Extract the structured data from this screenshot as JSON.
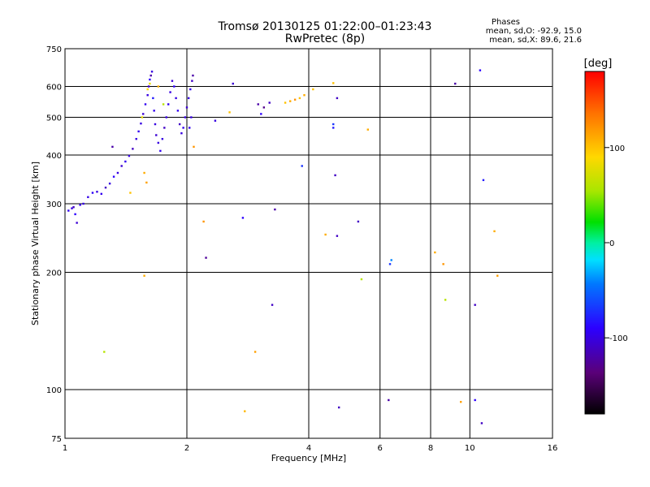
{
  "header": {
    "title": "Tromsø 20130125 01:22:00–01:23:43",
    "subtitle": "RwPretec (8p)",
    "stats_title": "Phases",
    "stats_o": "mean, sd,O: -92.9, 15.0",
    "stats_x": "mean, sd,X:  89.6, 21.6"
  },
  "chart_data": {
    "type": "scatter",
    "title": "Tromsø 20130125 01:22:00–01:23:43",
    "subtitle": "RwPretec (8p)",
    "xlabel": "Frequency [MHz]",
    "ylabel": "Stationary phase Virtual Height [km]",
    "xscale": "log",
    "yscale": "log",
    "xlim": [
      1,
      16
    ],
    "ylim": [
      75,
      750
    ],
    "x_ticks": [
      1,
      2,
      4,
      6,
      8,
      10,
      16
    ],
    "x_grid": [
      2,
      4,
      6,
      8,
      10
    ],
    "y_ticks": [
      75,
      100,
      200,
      300,
      400,
      500,
      600,
      750
    ],
    "y_grid": [
      100,
      200,
      300,
      400,
      500,
      600
    ],
    "colorbar": {
      "label": "[deg]",
      "range": [
        -180,
        180
      ],
      "ticks": [
        100,
        0,
        -100
      ]
    },
    "points": [
      [
        1.02,
        288,
        -95
      ],
      [
        1.04,
        292,
        -100
      ],
      [
        1.05,
        294,
        -110
      ],
      [
        1.06,
        282,
        -90
      ],
      [
        1.07,
        268,
        -105
      ],
      [
        1.09,
        298,
        -95
      ],
      [
        1.11,
        300,
        -100
      ],
      [
        1.14,
        312,
        -98
      ],
      [
        1.17,
        320,
        -92
      ],
      [
        1.2,
        322,
        -100
      ],
      [
        1.23,
        318,
        -95
      ],
      [
        1.26,
        330,
        -110
      ],
      [
        1.29,
        338,
        -100
      ],
      [
        1.31,
        420,
        -120
      ],
      [
        1.32,
        352,
        -90
      ],
      [
        1.35,
        360,
        -100
      ],
      [
        1.38,
        375,
        -105
      ],
      [
        1.41,
        385,
        -95
      ],
      [
        1.44,
        398,
        -100
      ],
      [
        1.47,
        415,
        -110
      ],
      [
        1.5,
        440,
        -100
      ],
      [
        1.52,
        460,
        -95
      ],
      [
        1.54,
        482,
        -100
      ],
      [
        1.56,
        510,
        -105
      ],
      [
        1.58,
        540,
        -95
      ],
      [
        1.6,
        570,
        -100
      ],
      [
        1.61,
        600,
        -110
      ],
      [
        1.62,
        625,
        -90
      ],
      [
        1.63,
        640,
        -120
      ],
      [
        1.64,
        655,
        -100
      ],
      [
        1.65,
        560,
        -80
      ],
      [
        1.66,
        520,
        -95
      ],
      [
        1.67,
        480,
        -100
      ],
      [
        1.68,
        450,
        -105
      ],
      [
        1.7,
        430,
        -100
      ],
      [
        1.72,
        410,
        -95
      ],
      [
        1.74,
        440,
        -100
      ],
      [
        1.76,
        470,
        -110
      ],
      [
        1.78,
        500,
        -100
      ],
      [
        1.8,
        540,
        -95
      ],
      [
        1.82,
        580,
        -100
      ],
      [
        1.84,
        620,
        -105
      ],
      [
        1.86,
        600,
        -90
      ],
      [
        1.88,
        560,
        -100
      ],
      [
        1.9,
        520,
        -95
      ],
      [
        1.92,
        480,
        -110
      ],
      [
        1.94,
        455,
        -100
      ],
      [
        1.96,
        470,
        -95
      ],
      [
        1.98,
        500,
        -100
      ],
      [
        2.0,
        530,
        -105
      ],
      [
        2.02,
        560,
        -100
      ],
      [
        2.04,
        590,
        -95
      ],
      [
        2.06,
        620,
        -110
      ],
      [
        2.07,
        640,
        -120
      ],
      [
        2.05,
        500,
        -100
      ],
      [
        2.03,
        470,
        -95
      ],
      [
        1.57,
        360,
        110
      ],
      [
        1.59,
        340,
        115
      ],
      [
        1.6,
        590,
        90
      ],
      [
        1.62,
        610,
        80
      ],
      [
        1.75,
        540,
        60
      ],
      [
        1.55,
        500,
        80
      ],
      [
        1.7,
        600,
        110
      ],
      [
        2.08,
        420,
        120
      ],
      [
        1.45,
        320,
        100
      ],
      [
        1.57,
        196,
        110
      ],
      [
        2.2,
        270,
        120
      ],
      [
        2.23,
        218,
        -125
      ],
      [
        2.35,
        490,
        -100
      ],
      [
        2.55,
        515,
        100
      ],
      [
        2.6,
        610,
        -105
      ],
      [
        2.75,
        276,
        -90
      ],
      [
        2.78,
        88,
        105
      ],
      [
        2.95,
        125,
        115
      ],
      [
        3.05,
        510,
        -90
      ],
      [
        3.0,
        540,
        -120
      ],
      [
        3.1,
        530,
        -130
      ],
      [
        3.2,
        545,
        -110
      ],
      [
        3.25,
        165,
        -110
      ],
      [
        3.3,
        290,
        -120
      ],
      [
        3.5,
        545,
        100
      ],
      [
        3.6,
        550,
        110
      ],
      [
        3.7,
        555,
        120
      ],
      [
        3.8,
        560,
        100
      ],
      [
        3.9,
        570,
        110
      ],
      [
        4.1,
        590,
        100
      ],
      [
        4.4,
        250,
        110
      ],
      [
        4.6,
        612,
        100
      ],
      [
        4.65,
        355,
        -110
      ],
      [
        4.7,
        560,
        -110
      ],
      [
        4.6,
        480,
        -70
      ],
      [
        4.6,
        470,
        -80
      ],
      [
        4.7,
        248,
        -110
      ],
      [
        4.75,
        90,
        -110
      ],
      [
        5.3,
        270,
        -110
      ],
      [
        5.4,
        192,
        60
      ],
      [
        5.6,
        465,
        110
      ],
      [
        6.3,
        94,
        -120
      ],
      [
        6.35,
        210,
        -70
      ],
      [
        6.4,
        215,
        -40
      ],
      [
        8.2,
        225,
        110
      ],
      [
        8.6,
        210,
        120
      ],
      [
        8.7,
        170,
        60
      ],
      [
        9.2,
        610,
        -120
      ],
      [
        9.5,
        93,
        115
      ],
      [
        10.3,
        165,
        -110
      ],
      [
        10.6,
        660,
        -90
      ],
      [
        10.8,
        345,
        -80
      ],
      [
        11.5,
        255,
        110
      ],
      [
        11.7,
        196,
        115
      ],
      [
        1.25,
        125,
        60
      ],
      [
        10.7,
        82,
        -110
      ],
      [
        10.3,
        94,
        -90
      ],
      [
        3.85,
        375,
        -70
      ]
    ]
  }
}
